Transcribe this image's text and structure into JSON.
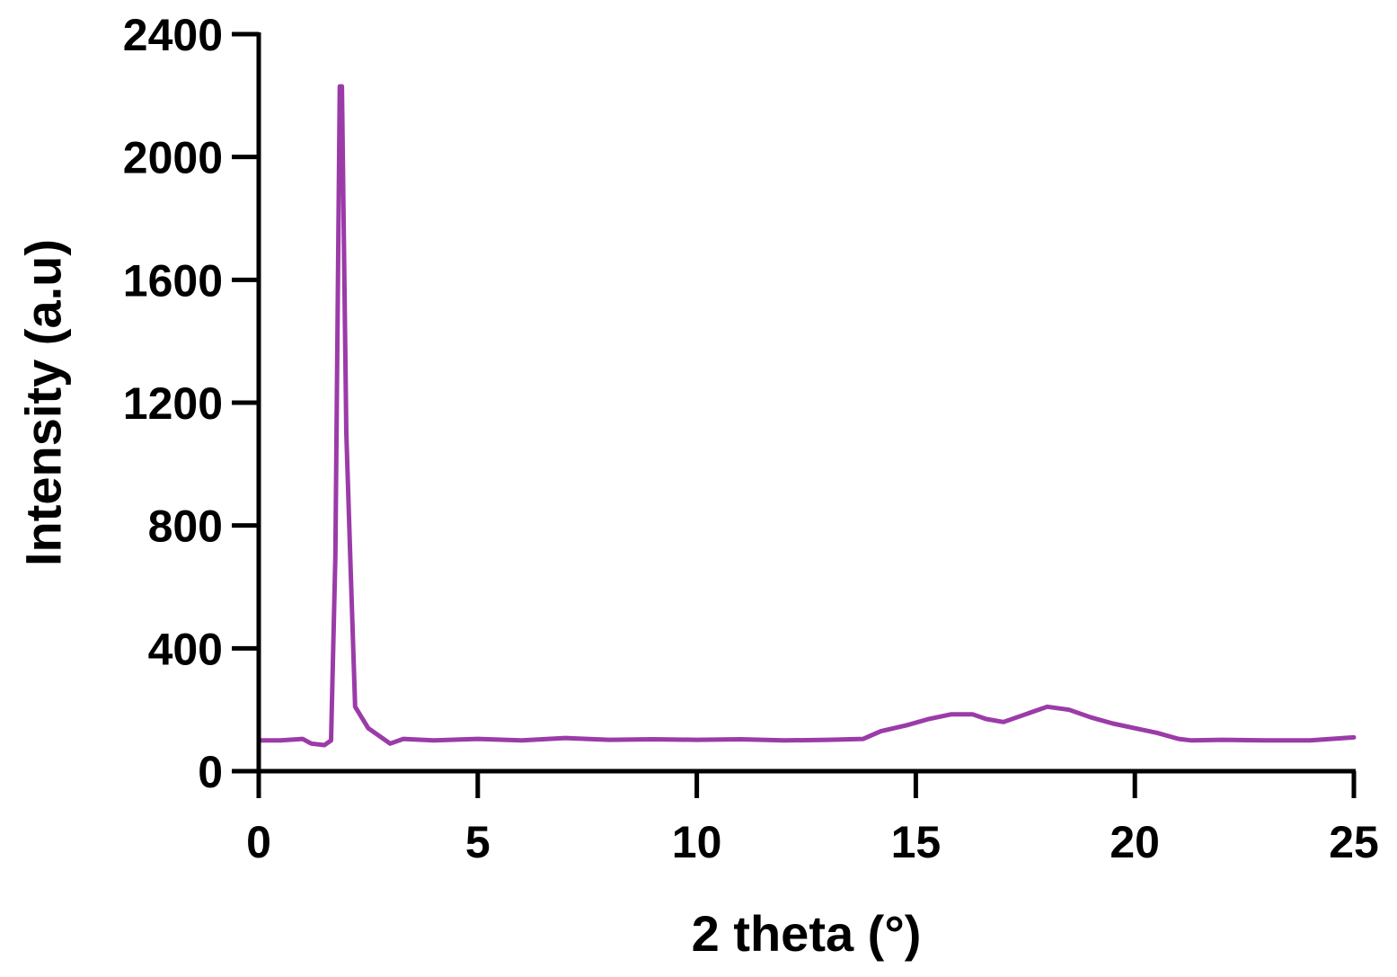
{
  "chart_data": {
    "type": "line",
    "title": "",
    "xlabel": "2 theta (°)",
    "ylabel": "Intensity (a.u)",
    "xlim": [
      0,
      25
    ],
    "ylim": [
      0,
      2400
    ],
    "xticks": [
      0,
      5,
      10,
      15,
      20,
      25
    ],
    "yticks": [
      0,
      400,
      800,
      1200,
      1600,
      2000,
      2400
    ],
    "xtick_labels": [
      "0",
      "5",
      "10",
      "15",
      "20",
      "25"
    ],
    "ytick_labels": [
      "0",
      "400",
      "800",
      "1200",
      "1600",
      "2000",
      "2400"
    ],
    "grid": false,
    "legend": "none",
    "series": [
      {
        "color": "#9B3BA8",
        "x": [
          0,
          0.5,
          1.0,
          1.2,
          1.5,
          1.65,
          1.75,
          1.85,
          1.9,
          2.0,
          2.1,
          2.2,
          2.5,
          2.8,
          3.0,
          3.3,
          4,
          5,
          6,
          7,
          8,
          9,
          10,
          11,
          12,
          13,
          13.8,
          14.2,
          14.8,
          15.3,
          15.8,
          16.3,
          16.6,
          17.0,
          17.5,
          18.0,
          18.5,
          19.0,
          19.5,
          20.0,
          20.5,
          21.0,
          21.3,
          22,
          23,
          24,
          25
        ],
        "y": [
          100,
          100,
          105,
          90,
          85,
          100,
          700,
          2230,
          2230,
          1100,
          650,
          210,
          140,
          110,
          90,
          105,
          100,
          105,
          100,
          108,
          102,
          104,
          102,
          104,
          100,
          102,
          105,
          130,
          150,
          170,
          185,
          185,
          170,
          160,
          185,
          210,
          200,
          175,
          155,
          140,
          125,
          105,
          100,
          102,
          100,
          100,
          110
        ]
      }
    ]
  }
}
